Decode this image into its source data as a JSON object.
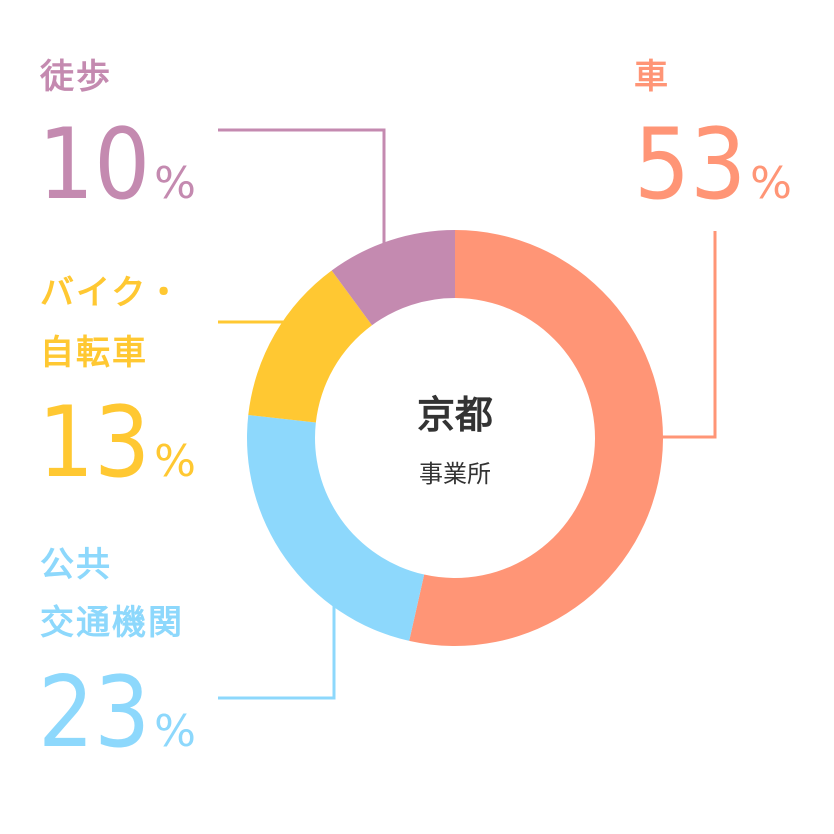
{
  "chart_data": {
    "type": "pie",
    "center_title": "京都",
    "center_subtitle": "事業所",
    "percent_sign": "%",
    "slices": [
      {
        "label_lines": [
          "車"
        ],
        "value": 53,
        "color": "#FF9576"
      },
      {
        "label_lines": [
          "公共",
          "交通機関"
        ],
        "value": 23,
        "color": "#8DD8FC"
      },
      {
        "label_lines": [
          "バイク・",
          "自転車"
        ],
        "value": 13,
        "color": "#FFC832"
      },
      {
        "label_lines": [
          "徒歩"
        ],
        "value": 10,
        "color": "#C48AB0"
      }
    ]
  }
}
